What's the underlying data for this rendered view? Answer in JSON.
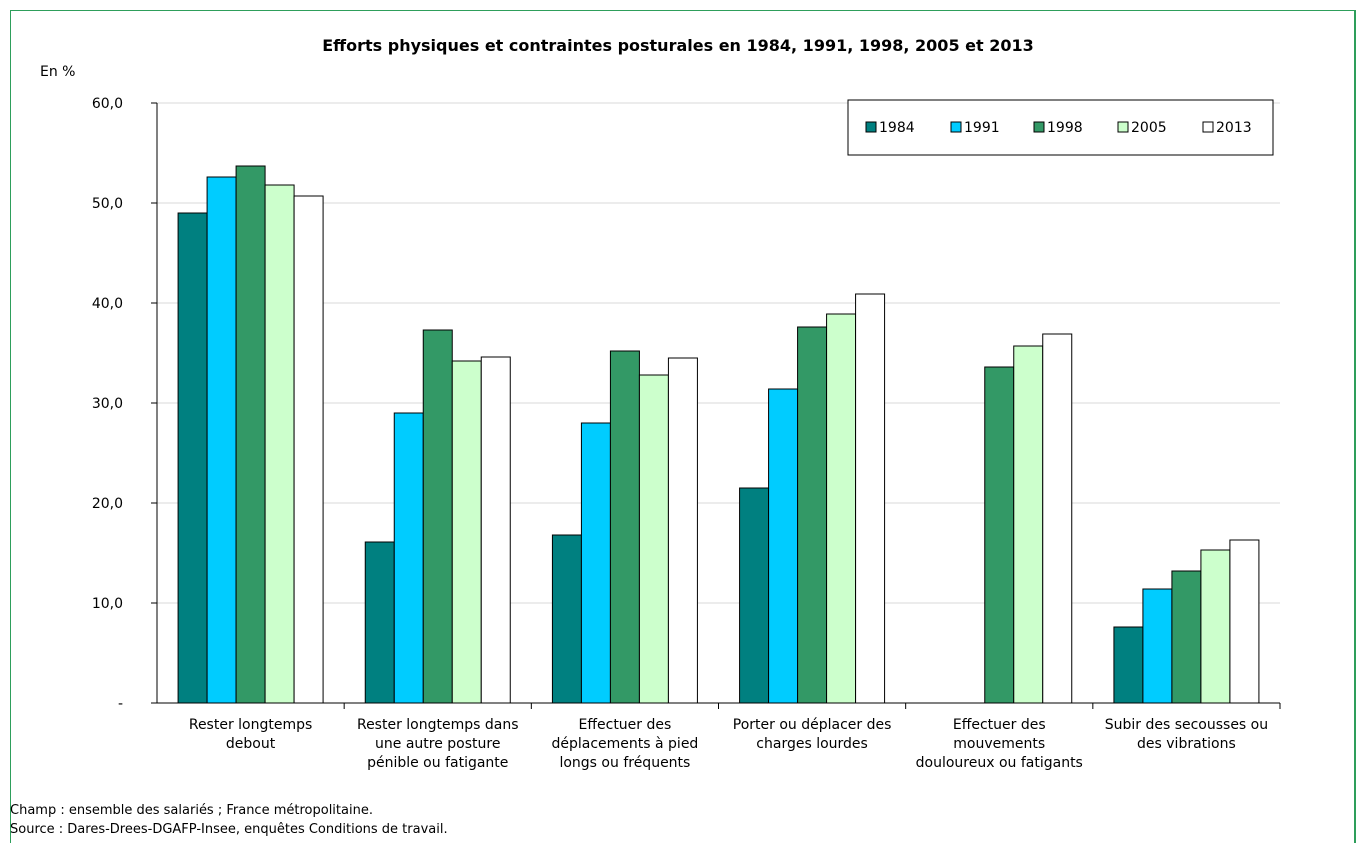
{
  "chart_data": {
    "type": "bar",
    "title": "Efforts physiques et contraintes posturales en 1984, 1991, 1998, 2005 et 2013",
    "unit_label": "En %",
    "y_ticks": [
      "-",
      "10,0",
      "20,0",
      "30,0",
      "40,0",
      "50,0",
      "60,0"
    ],
    "ylim": [
      0,
      60
    ],
    "grid": true,
    "legend_position": "top-right",
    "categories": [
      [
        "Rester longtemps",
        "debout"
      ],
      [
        "Rester longtemps dans",
        "une autre posture",
        "pénible ou fatigante"
      ],
      [
        "Effectuer des",
        "déplacements à pied",
        "longs ou fréquents"
      ],
      [
        "Porter ou déplacer des",
        "charges lourdes"
      ],
      [
        "Effectuer des",
        "mouvements",
        "douloureux ou fatigants"
      ],
      [
        "Subir des secousses ou",
        "des vibrations"
      ]
    ],
    "series": [
      {
        "name": "1984",
        "color": "#008080",
        "values": [
          49.0,
          16.1,
          16.8,
          21.5,
          null,
          7.6
        ]
      },
      {
        "name": "1991",
        "color": "#00ccff",
        "values": [
          52.6,
          29.0,
          28.0,
          31.4,
          null,
          11.4
        ]
      },
      {
        "name": "1998",
        "color": "#339966",
        "values": [
          53.7,
          37.3,
          35.2,
          37.6,
          33.6,
          13.2
        ]
      },
      {
        "name": "2005",
        "color": "#ccffcc",
        "values": [
          51.8,
          34.2,
          32.8,
          38.9,
          35.7,
          15.3
        ]
      },
      {
        "name": "2013",
        "color": "#ffffff",
        "values": [
          50.7,
          34.6,
          34.5,
          40.9,
          36.9,
          16.3
        ]
      }
    ]
  },
  "footnotes": {
    "champ": "Champ : ensemble des salariés ; France métropolitaine.",
    "source": "Source : Dares-Drees-DGAFP-Insee, enquêtes Conditions de travail."
  }
}
